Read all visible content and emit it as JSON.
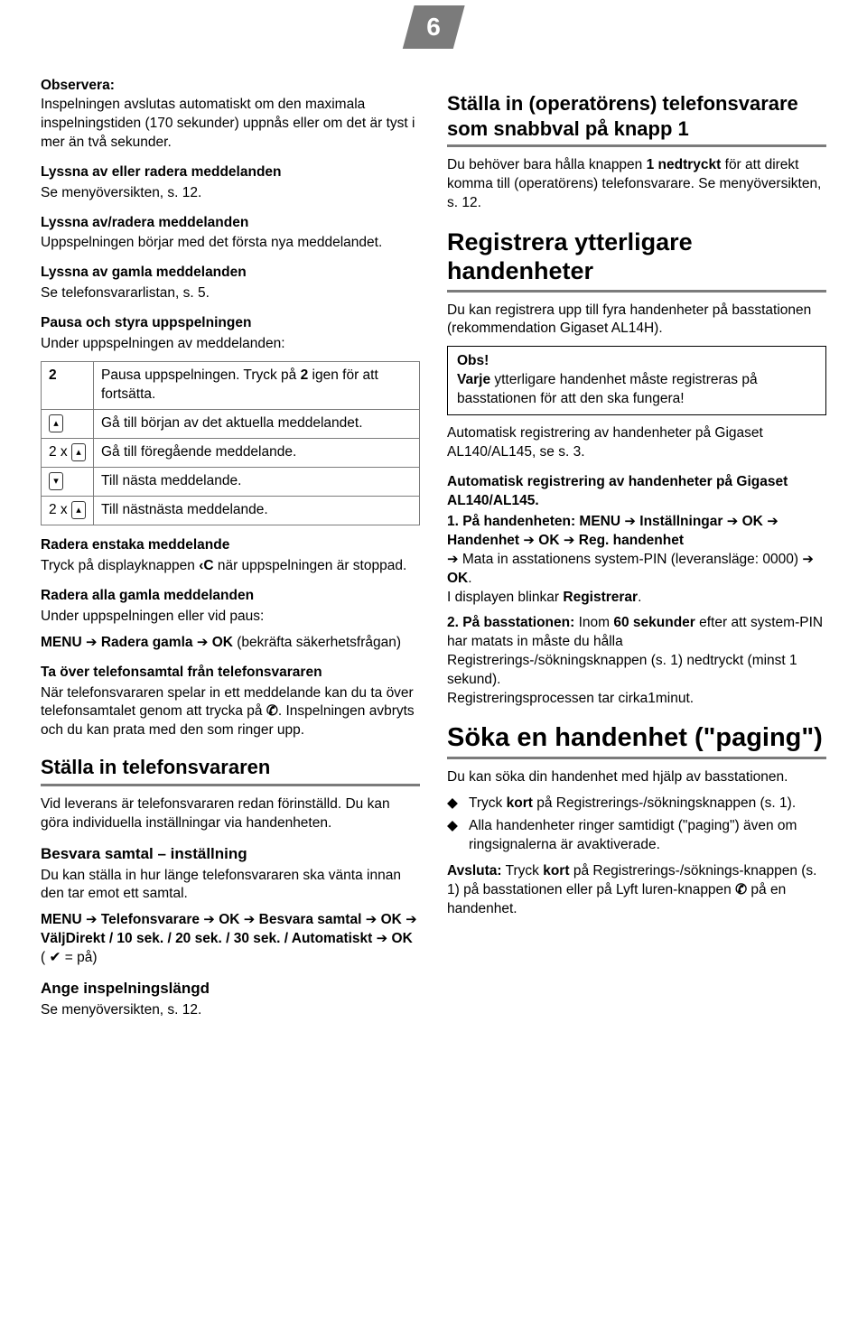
{
  "page_number": "6",
  "left": {
    "obs_heading": "Observera:",
    "obs_body": "Inspelningen avslutas automatiskt om den maximala inspelningstiden (170 sekunder) uppnås eller om det är tyst i mer än två sekunder.",
    "h_lyssna_radera": "Lyssna av eller radera meddelanden",
    "lyssna_radera_body": "Se menyöversikten, s. 12.",
    "h_lyssna_avradera": "Lyssna av/radera meddelanden",
    "lyssna_avradera_body": "Uppspelningen börjar med det första nya meddelandet.",
    "h_gamla": "Lyssna av gamla meddelanden",
    "gamla_body": "Se telefonsvararlistan, s. 5.",
    "h_pausa": "Pausa och styra uppspelningen",
    "pausa_intro": "Under uppspelningen av meddelanden:",
    "table": [
      {
        "k": "2",
        "v_pre": "Pausa uppspelningen. Tryck på ",
        "v_key": "2",
        "v_post": " igen för att fortsätta."
      },
      {
        "k_icon": "up",
        "v": "Gå till början av det aktuella meddelandet."
      },
      {
        "k_combo_pre": "2 x ",
        "k_icon": "up",
        "v": "Gå till föregående meddelande."
      },
      {
        "k_icon": "down",
        "v": "Till nästa meddelande."
      },
      {
        "k_combo_pre": "2 x ",
        "k_icon": "up",
        "v": "Till nästnästa meddelande."
      }
    ],
    "h_radera_enstaka": "Radera enstaka meddelande",
    "radera_enstaka_pre": "Tryck på displayknappen ",
    "radera_enstaka_icon": "‹C",
    "radera_enstaka_post": " när uppspelningen är stoppad.",
    "h_radera_alla": "Radera alla gamla meddelanden",
    "radera_alla_l1": "Under uppspelningen eller vid paus:",
    "radera_alla_menu_pre": "MENU ",
    "radera_alla_arrow": "➔",
    "radera_alla_item1": " Radera gamla ",
    "radera_alla_item2": " OK",
    "radera_alla_post": " (bekräfta säkerhetsfrågan)",
    "h_taover": "Ta över telefonsamtal från telefonsvararen",
    "taover_l1_pre": "När telefonsvararen spelar in ett meddelande kan du ta över telefonsamtalet genom att trycka på ",
    "taover_icon": "✆",
    "taover_l1_post": ".",
    "taover_l2": "Inspelningen avbryts och du kan prata med den som ringer upp.",
    "h_stalla_svar": "Ställa in telefonsvararen",
    "stalla_svar_body": "Vid leverans är telefonsvararen redan förinställd. Du kan göra individuella inställningar via handenheten.",
    "h_besvara": "Besvara samtal – inställning",
    "besvara_intro": "Du kan ställa in hur länge telefonsvararen ska vänta innan den tar emot ett samtal.",
    "besvara_menu_pre": "MENU ",
    "besvara_seq": [
      "Telefonsvarare",
      "OK",
      "Besvara samtal",
      "OK",
      "Välj",
      "Direkt / 10 sek. / 20 sek. / 30 sek. / Automatiskt",
      "OK"
    ],
    "besvara_tail_pre": " ( ",
    "besvara_check": "✔",
    "besvara_tail_post": " = på)",
    "h_ange_langd": "Ange inspelningslängd",
    "ange_langd_body": "Se menyöversikten, s. 12."
  },
  "right": {
    "h_snabbval": "Ställa in (operatörens) telefonsvarare som snabbval på knapp 1",
    "snabbval_l1_pre": "Du behöver bara hålla knappen ",
    "snabbval_key": "1",
    "snabbval_l1_mid": " nedtryckt",
    "snabbval_l1_post": " för att direkt komma till (operatörens) telefonsvarare. Se menyöversikten, s. 12.",
    "h_registrera": "Registrera ytterligare handenheter",
    "registrera_intro": "Du kan registrera upp till fyra handenheter på basstationen (rekommendation Gigaset AL14H).",
    "obs_box_h": "Obs!",
    "obs_box_b_pre": "Varje",
    "obs_box_b_post": " ytterligare handenhet måste registreras på basstationen för att den ska fungera!",
    "auto_reg": "Automatisk registrering av handenheter på Gigaset AL140/AL145, se s. 3.",
    "h_auto_reg": "Automatisk registrering av handenheter på Gigaset AL140/AL145.",
    "step1_lead": "1. På handenheten:",
    "step1_menu_pre": " MENU ",
    "step1_arrow": "➔",
    "step1_seq": [
      "Inställningar",
      "OK",
      "Handenhet",
      "OK",
      "Reg. handenhet"
    ],
    "step1_l2_pre": " Mata in asstationens system-PIN (leveransläge: 0000) ",
    "step1_l2_ok": " OK",
    "step1_l3_pre": "I displayen blinkar ",
    "step1_l3_b": "Registrerar",
    "step1_l3_post": ".",
    "step2_lead": "2. På basstationen:",
    "step2_l1_pre": " Inom ",
    "step2_l1_b": "60 sekunder",
    "step2_l1_post": " efter att system-PIN har matats in måste du hålla Registrerings-/sökningsknappen (s. 1) nedtryckt (minst 1 sekund).",
    "step2_l2": "Registreringsprocessen tar cirka1minut.",
    "h_paging": "Söka en handenhet (\"paging\")",
    "paging_intro": "Du kan söka din handenhet med hjälp av basstationen.",
    "paging_b1_pre": "Tryck ",
    "paging_b1_b": "kort",
    "paging_b1_post": " på Registrerings-/sökningsknappen (s. 1).",
    "paging_b2": "Alla handenheter ringer samtidigt (\"paging\") även om ringsignalerna är avaktiverade.",
    "paging_avsluta_lead": "Avsluta:",
    "paging_avsluta_pre": " Tryck ",
    "paging_avsluta_b": "kort",
    "paging_avsluta_mid": " på Registrerings-/söknings-knappen (s. 1) på basstationen eller på Lyft luren-knappen ",
    "paging_avsluta_icon": "✆",
    "paging_avsluta_post": " på en handenhet."
  },
  "bullet_glyph": "◆",
  "arrow_glyph": "➔"
}
